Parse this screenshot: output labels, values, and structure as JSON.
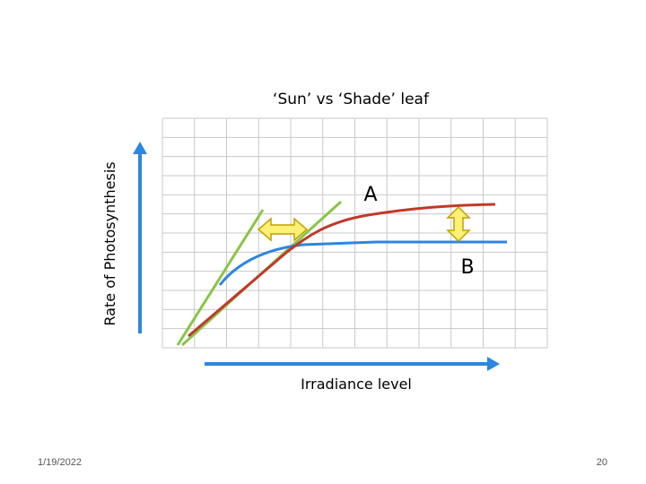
{
  "slide": {
    "date": "1/19/2022",
    "page_number": "20"
  },
  "chart_data": {
    "type": "line",
    "title": "‘Sun’ vs ‘Shade’ leaf",
    "xlabel": "Irradiance level",
    "ylabel": "Rate of Photosynthesis",
    "grid": true,
    "axis_ticks": false,
    "labels": {
      "A": "A",
      "B": "B"
    },
    "series": [
      {
        "key": "A",
        "color": "#c0392b",
        "shape": "sun-leaf curve: steady rise, higher plateau"
      },
      {
        "key": "B",
        "color": "#2e86de",
        "shape": "shade-leaf curve: steep initial rise, lower plateau"
      }
    ],
    "annotations": [
      {
        "type": "tangent-line",
        "color": "#8bc34a",
        "note": "initial slope of B"
      },
      {
        "type": "tangent-line",
        "color": "#8bc34a",
        "note": "initial slope of A"
      },
      {
        "type": "double-arrow-horizontal",
        "color": "#ffeb3b",
        "note": "difference in initial slope"
      },
      {
        "type": "double-arrow-vertical",
        "color": "#ffeb3b",
        "note": "difference in maximum rate"
      }
    ],
    "colors": {
      "axis_arrows": "#2e86de",
      "grid": "#c8c8c8",
      "arrow_fill": "#fff176",
      "arrow_stroke": "#c0a000"
    }
  }
}
